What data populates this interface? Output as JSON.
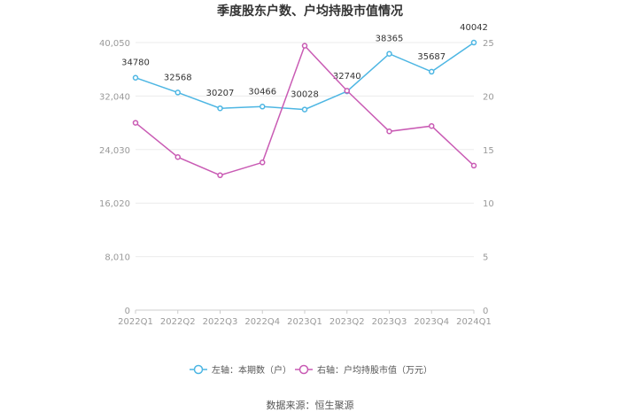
{
  "chart_data": {
    "type": "line",
    "title": "季度股东户数、户均持股市值情况",
    "categories": [
      "2022Q1",
      "2022Q2",
      "2022Q3",
      "2022Q4",
      "2023Q1",
      "2023Q2",
      "2023Q3",
      "2023Q4",
      "2024Q1"
    ],
    "left_axis": {
      "ylim": [
        0,
        40050
      ],
      "ticks": [
        "0",
        "8,010",
        "16,020",
        "24,030",
        "32,040",
        "40,050"
      ]
    },
    "right_axis": {
      "ylim": [
        0,
        25
      ],
      "ticks": [
        "0",
        "5",
        "10",
        "15",
        "20",
        "25"
      ]
    },
    "series": [
      {
        "name": "左轴：本期数（户）",
        "axis": "left",
        "color": "#4DB6E3",
        "values": [
          34780,
          32568,
          30207,
          30466,
          30028,
          32740,
          38365,
          35687,
          40042
        ],
        "labels": [
          "34780",
          "32568",
          "30207",
          "30466",
          "30028",
          "32740",
          "38365",
          "35687",
          "40042"
        ]
      },
      {
        "name": "右轴：户均持股市值（万元）",
        "axis": "right",
        "color": "#C95BB4",
        "values": [
          17.5,
          14.3,
          12.6,
          13.8,
          24.7,
          20.5,
          16.7,
          17.2,
          13.5
        ]
      }
    ],
    "legend_position": "bottom",
    "grid": true
  },
  "source": "数据来源：恒生聚源"
}
